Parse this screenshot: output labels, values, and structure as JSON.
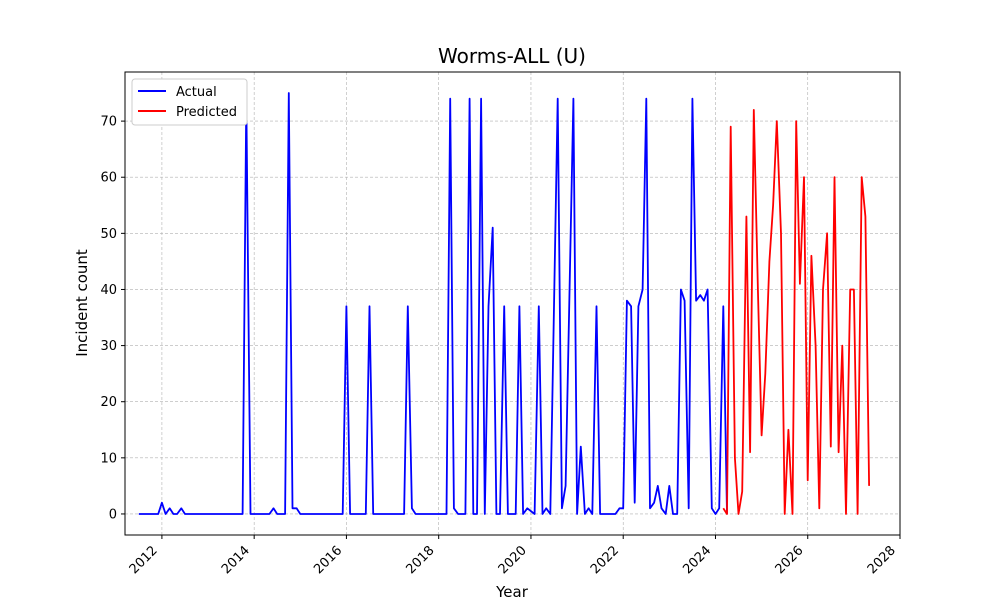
{
  "chart_data": {
    "type": "line",
    "title": "Worms-ALL (U)",
    "xlabel": "Year",
    "ylabel": "Incident count",
    "xlim": [
      2011.2,
      2028.0
    ],
    "ylim": [
      -3.75,
      78.75
    ],
    "x_ticks": [
      2012,
      2014,
      2016,
      2018,
      2020,
      2022,
      2024,
      2026,
      2028
    ],
    "y_ticks": [
      0,
      10,
      20,
      30,
      40,
      50,
      60,
      70
    ],
    "grid": true,
    "legend_position": "top-left",
    "series": [
      {
        "name": "Actual",
        "color": "#0000ff",
        "points": [
          [
            2011.5,
            0
          ],
          [
            2011.92,
            0
          ],
          [
            2012.0,
            2
          ],
          [
            2012.08,
            0
          ],
          [
            2012.17,
            1
          ],
          [
            2012.25,
            0
          ],
          [
            2012.33,
            0
          ],
          [
            2012.42,
            1
          ],
          [
            2012.5,
            0
          ],
          [
            2013.0,
            0
          ],
          [
            2013.5,
            0
          ],
          [
            2013.75,
            0
          ],
          [
            2013.83,
            74
          ],
          [
            2013.92,
            0
          ],
          [
            2014.0,
            0
          ],
          [
            2014.33,
            0
          ],
          [
            2014.42,
            1
          ],
          [
            2014.5,
            0
          ],
          [
            2014.67,
            0
          ],
          [
            2014.75,
            75
          ],
          [
            2014.83,
            1
          ],
          [
            2014.92,
            1
          ],
          [
            2015.0,
            0
          ],
          [
            2015.5,
            0
          ],
          [
            2015.92,
            0
          ],
          [
            2016.0,
            37
          ],
          [
            2016.08,
            0
          ],
          [
            2016.42,
            0
          ],
          [
            2016.5,
            37
          ],
          [
            2016.58,
            0
          ],
          [
            2017.25,
            0
          ],
          [
            2017.33,
            37
          ],
          [
            2017.42,
            1
          ],
          [
            2017.5,
            0
          ],
          [
            2018.17,
            0
          ],
          [
            2018.25,
            74
          ],
          [
            2018.33,
            1
          ],
          [
            2018.42,
            0
          ],
          [
            2018.58,
            0
          ],
          [
            2018.67,
            74
          ],
          [
            2018.75,
            0
          ],
          [
            2018.83,
            0
          ],
          [
            2018.92,
            74
          ],
          [
            2019.0,
            0
          ],
          [
            2019.08,
            37
          ],
          [
            2019.17,
            51
          ],
          [
            2019.25,
            0
          ],
          [
            2019.33,
            0
          ],
          [
            2019.42,
            37
          ],
          [
            2019.5,
            0
          ],
          [
            2019.67,
            0
          ],
          [
            2019.75,
            37
          ],
          [
            2019.83,
            0
          ],
          [
            2019.92,
            1
          ],
          [
            2020.08,
            0
          ],
          [
            2020.17,
            37
          ],
          [
            2020.25,
            0
          ],
          [
            2020.33,
            1
          ],
          [
            2020.42,
            0
          ],
          [
            2020.58,
            74
          ],
          [
            2020.67,
            1
          ],
          [
            2020.75,
            5
          ],
          [
            2020.92,
            74
          ],
          [
            2021.0,
            0
          ],
          [
            2021.08,
            12
          ],
          [
            2021.17,
            0
          ],
          [
            2021.25,
            1
          ],
          [
            2021.33,
            0
          ],
          [
            2021.42,
            37
          ],
          [
            2021.5,
            0
          ],
          [
            2021.75,
            0
          ],
          [
            2021.83,
            0
          ],
          [
            2021.92,
            1
          ],
          [
            2022.0,
            1
          ],
          [
            2022.08,
            38
          ],
          [
            2022.17,
            37
          ],
          [
            2022.25,
            2
          ],
          [
            2022.33,
            37
          ],
          [
            2022.42,
            40
          ],
          [
            2022.5,
            74
          ],
          [
            2022.58,
            1
          ],
          [
            2022.67,
            2
          ],
          [
            2022.75,
            5
          ],
          [
            2022.83,
            1
          ],
          [
            2022.92,
            0
          ],
          [
            2023.0,
            5
          ],
          [
            2023.08,
            0
          ],
          [
            2023.17,
            0
          ],
          [
            2023.25,
            40
          ],
          [
            2023.33,
            38
          ],
          [
            2023.42,
            1
          ],
          [
            2023.5,
            74
          ],
          [
            2023.58,
            38
          ],
          [
            2023.67,
            39
          ],
          [
            2023.75,
            38
          ],
          [
            2023.83,
            40
          ],
          [
            2023.92,
            1
          ],
          [
            2024.0,
            0
          ],
          [
            2024.08,
            1
          ],
          [
            2024.17,
            37
          ],
          [
            2024.25,
            0
          ]
        ]
      },
      {
        "name": "Predicted",
        "color": "#ff0000",
        "points": [
          [
            2024.17,
            1
          ],
          [
            2024.25,
            0
          ],
          [
            2024.33,
            69
          ],
          [
            2024.42,
            10
          ],
          [
            2024.5,
            0
          ],
          [
            2024.58,
            4
          ],
          [
            2024.67,
            53
          ],
          [
            2024.75,
            11
          ],
          [
            2024.83,
            72
          ],
          [
            2024.92,
            40
          ],
          [
            2025.0,
            14
          ],
          [
            2025.08,
            25
          ],
          [
            2025.17,
            45
          ],
          [
            2025.25,
            55
          ],
          [
            2025.33,
            70
          ],
          [
            2025.42,
            50
          ],
          [
            2025.5,
            0
          ],
          [
            2025.58,
            15
          ],
          [
            2025.67,
            0
          ],
          [
            2025.75,
            70
          ],
          [
            2025.83,
            41
          ],
          [
            2025.92,
            60
          ],
          [
            2026.0,
            6
          ],
          [
            2026.08,
            46
          ],
          [
            2026.17,
            30
          ],
          [
            2026.25,
            1
          ],
          [
            2026.33,
            40
          ],
          [
            2026.42,
            50
          ],
          [
            2026.5,
            12
          ],
          [
            2026.58,
            60
          ],
          [
            2026.67,
            11
          ],
          [
            2026.75,
            30
          ],
          [
            2026.83,
            0
          ],
          [
            2026.92,
            40
          ],
          [
            2027.0,
            40
          ],
          [
            2027.08,
            0
          ],
          [
            2027.17,
            60
          ],
          [
            2027.25,
            53
          ],
          [
            2027.33,
            5
          ]
        ]
      }
    ]
  }
}
